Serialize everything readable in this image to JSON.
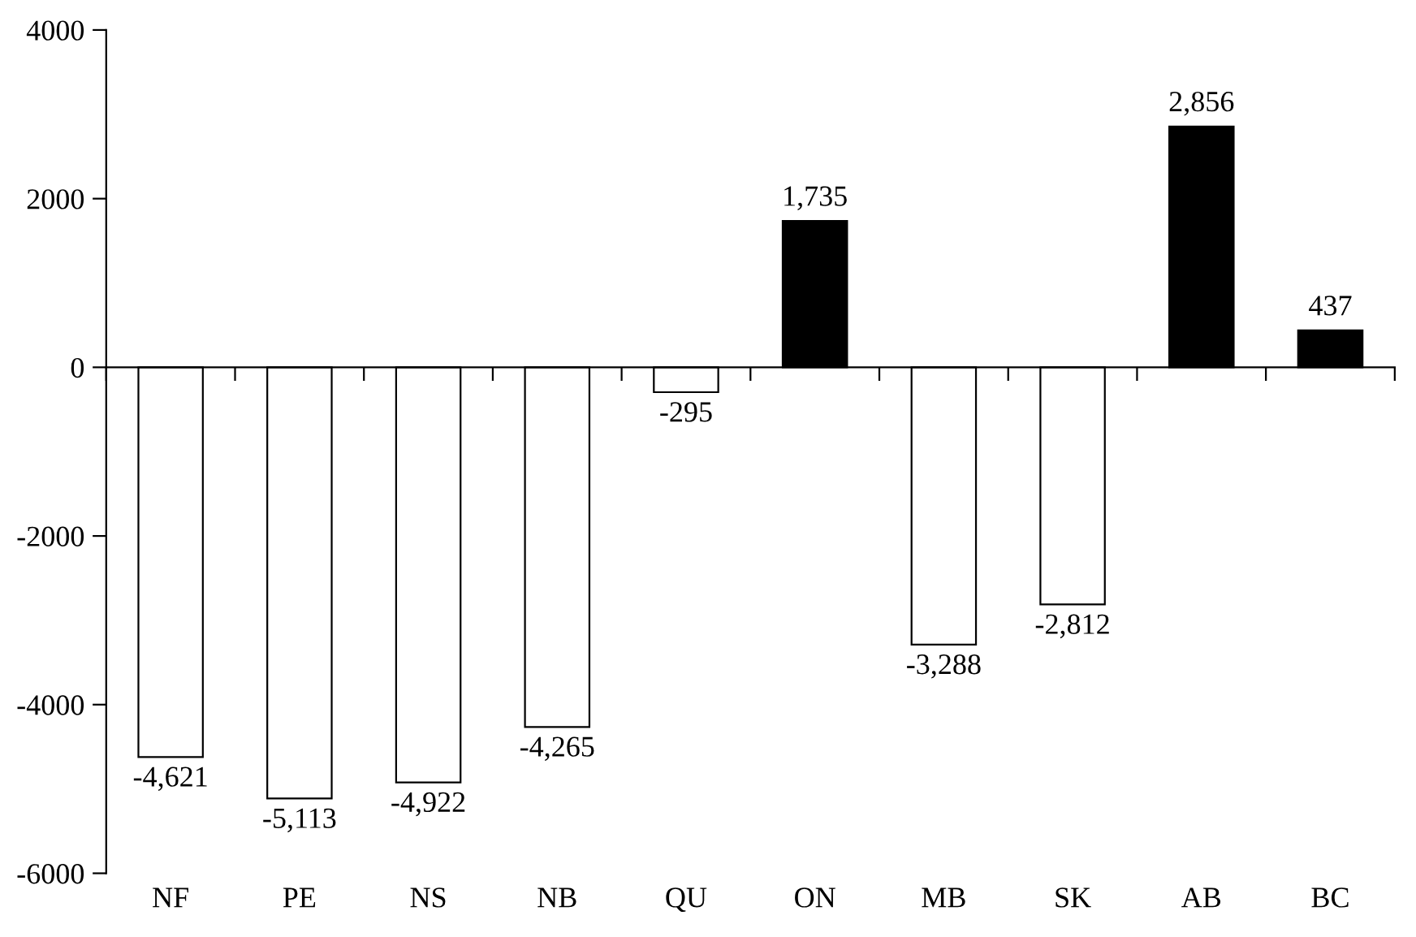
{
  "chart_data": {
    "type": "bar",
    "categories": [
      "NF",
      "PE",
      "NS",
      "NB",
      "QU",
      "ON",
      "MB",
      "SK",
      "AB",
      "BC"
    ],
    "values": [
      -4621,
      -5113,
      -4922,
      -4265,
      -295,
      1735,
      -3288,
      -2812,
      2856,
      437
    ],
    "value_labels": [
      "-4,621",
      "-5,113",
      "-4,922",
      "-4,265",
      "-295",
      "1,735",
      "-3,288",
      "-2,812",
      "2,856",
      "437"
    ],
    "colors": [
      "#ffffff",
      "#ffffff",
      "#ffffff",
      "#ffffff",
      "#ffffff",
      "#000000",
      "#ffffff",
      "#ffffff",
      "#000000",
      "#000000"
    ],
    "ylim": [
      -6000,
      4000
    ],
    "yticks": [
      -6000,
      -4000,
      -2000,
      0,
      2000,
      4000
    ]
  }
}
